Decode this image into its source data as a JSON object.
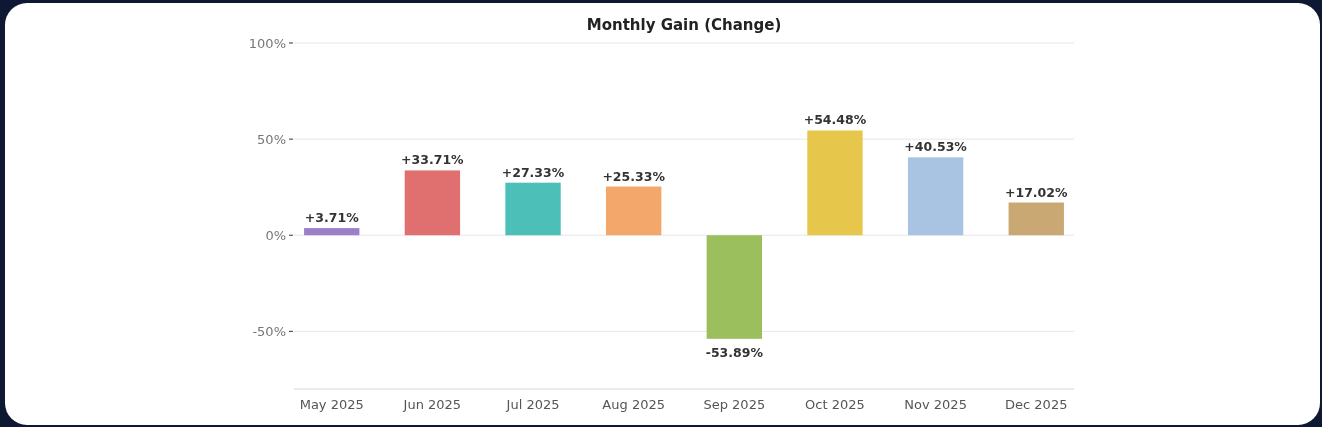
{
  "chart_data": {
    "type": "bar",
    "title": "Monthly Gain (Change)",
    "categories": [
      "May 2025",
      "Jun 2025",
      "Jul 2025",
      "Aug 2025",
      "Sep 2025",
      "Oct 2025",
      "Nov 2025",
      "Dec 2025"
    ],
    "values": [
      3.71,
      33.71,
      27.33,
      25.33,
      -53.89,
      54.48,
      40.53,
      17.02
    ],
    "colors": [
      "#9b7fc8",
      "#e07070",
      "#4dbfb9",
      "#f4a76b",
      "#9bbf5c",
      "#e6c64b",
      "#a9c4e2",
      "#c9a873"
    ],
    "value_labels": [
      "+3.71%",
      "+33.71%",
      "+27.33%",
      "+25.33%",
      "-53.89%",
      "+54.48%",
      "+40.53%",
      "+17.02%"
    ],
    "ylim": [
      -80,
      100
    ],
    "yticks": [
      {
        "value": 100,
        "label": "100%"
      },
      {
        "value": 50,
        "label": "50%"
      },
      {
        "value": 0,
        "label": "0%"
      },
      {
        "value": -50,
        "label": "-50%"
      }
    ],
    "grid": "y"
  }
}
